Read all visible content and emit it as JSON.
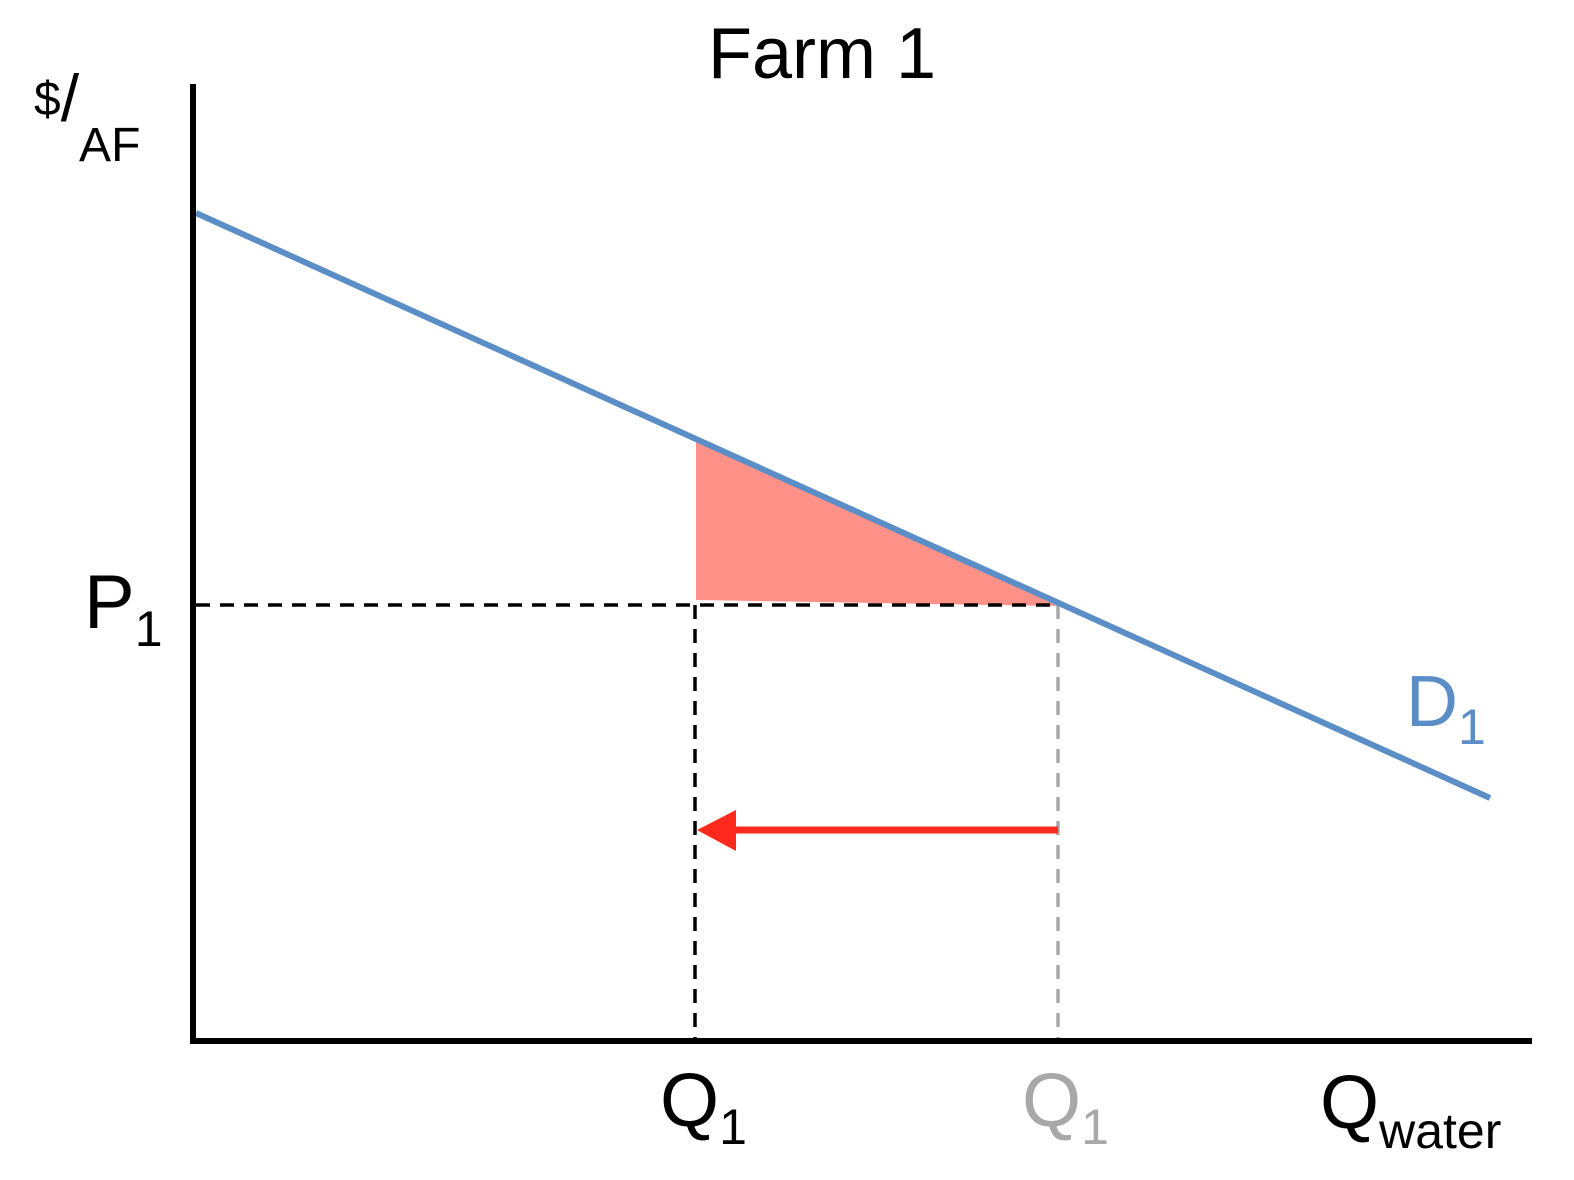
{
  "diagram": {
    "title": "Farm 1",
    "y_axis_label": {
      "dollar": "$",
      "slash": "/",
      "unit": "AF"
    },
    "x_axis_label": {
      "main": "Q",
      "subscript": "water"
    },
    "price_label": {
      "main": "P",
      "subscript": "1"
    },
    "new_quantity_label": {
      "main": "Q",
      "subscript": "1"
    },
    "old_quantity_label": {
      "main": "Q",
      "subscript": "1"
    },
    "demand_label": {
      "main": "D",
      "subscript": "1"
    }
  },
  "colors": {
    "axis": "#000000",
    "demand": "#5b8ec7",
    "shaded_area": "#ff9188",
    "arrow": "#ff2a1d",
    "old_quantity": "#a8a8a8",
    "guide": "#000000"
  }
}
